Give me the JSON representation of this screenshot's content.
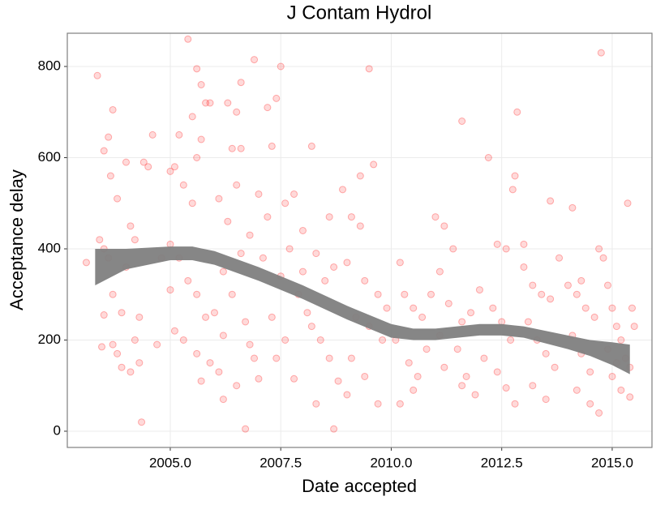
{
  "chart_data": {
    "type": "scatter",
    "title": "J Contam Hydrol",
    "x_label": "Date accepted",
    "y_label": "Acceptance delay",
    "color": "#ff0000",
    "grid": true,
    "xlim": [
      2002.67,
      2015.9
    ],
    "ylim": [
      -35.6,
      872.9
    ],
    "xticks": [
      {
        "value": 2005,
        "label": "2005.0"
      },
      {
        "value": 2007.5,
        "label": "2007.5"
      },
      {
        "value": 2010,
        "label": "2010.0"
      },
      {
        "value": 2012.5,
        "label": "2012.5"
      },
      {
        "value": 2015,
        "label": "2015.0"
      }
    ],
    "yticks": [
      0,
      200,
      400,
      600,
      800
    ],
    "x": [
      2003.35,
      2003.5,
      2003.6,
      2003.7,
      2003.65,
      2003.8,
      2003.4,
      2003.5,
      2003.6,
      2003.7,
      2003.5,
      2003.45,
      2003.7,
      2003.8,
      2003.9,
      2004.0,
      2004.1,
      2004.2,
      2004.3,
      2004.1,
      2004.2,
      2004.3,
      2004.35,
      2003.9,
      2004.0,
      2004.5,
      2004.6,
      2004.4,
      2004.7,
      2003.1,
      2004.8,
      2005.0,
      2005.1,
      2005.2,
      2005.4,
      2005.5,
      2005.6,
      2005.7,
      2005.8,
      2005.9,
      2005.7,
      2005.6,
      2005.3,
      2005.5,
      2005.0,
      2005.2,
      2005.4,
      2005.6,
      2005.8,
      2005.0,
      2005.1,
      2005.3,
      2005.6,
      2005.7,
      2005.9,
      2006.0,
      2006.1,
      2006.2,
      2006.3,
      2006.5,
      2006.6,
      2006.9,
      2006.4,
      2006.6,
      2006.1,
      2006.3,
      2006.5,
      2006.6,
      2006.2,
      2006.4,
      2006.7,
      2006.8,
      2006.9,
      2006.5,
      2006.7,
      2006.2,
      2006.8,
      2007.2,
      2007.4,
      2007.5,
      2007.3,
      2007.0,
      2007.2,
      2007.6,
      2007.8,
      2007.7,
      2007.1,
      2007.5,
      2007.9,
      2007.3,
      2007.6,
      2007.8,
      2007.0,
      2007.4,
      2008.2,
      2008.3,
      2008.0,
      2008.5,
      2008.7,
      2008.1,
      2008.4,
      2008.6,
      2008.8,
      2008.7,
      2008.3,
      2008.0,
      2008.6,
      2008.9,
      2008.2,
      2009.5,
      2009.3,
      2009.6,
      2009.1,
      2009.3,
      2009.0,
      2009.4,
      2009.7,
      2009.2,
      2009.5,
      2009.8,
      2009.1,
      2009.4,
      2009.0,
      2009.7,
      2009.9,
      2010.2,
      2010.3,
      2010.5,
      2010.1,
      2010.4,
      2010.6,
      2010.8,
      2010.2,
      2010.5,
      2010.9,
      2010.7,
      2011.6,
      2011.0,
      2011.2,
      2011.4,
      2011.1,
      2011.3,
      2011.6,
      2011.8,
      2011.5,
      2011.2,
      2011.7,
      2011.9,
      2011.1,
      2012.2,
      2012.4,
      2012.6,
      2012.0,
      2012.3,
      2012.5,
      2012.7,
      2012.1,
      2012.4,
      2012.6,
      2012.8,
      2011.6,
      2012.85,
      2012.8,
      2012.75,
      2013.0,
      2013.2,
      2013.4,
      2013.6,
      2013.1,
      2013.3,
      2013.5,
      2013.7,
      2013.2,
      2013.5,
      2013.6,
      2013.8,
      2013.0,
      2014.1,
      2014.0,
      2014.2,
      2014.4,
      2014.6,
      2014.1,
      2014.3,
      2014.5,
      2014.2,
      2014.5,
      2014.7,
      2014.3,
      2014.75,
      2014.7,
      2014.8,
      2014.9,
      2015.0,
      2015.1,
      2015.2,
      2015.3,
      2015.0,
      2015.2,
      2015.4,
      2015.35,
      2015.45,
      2015.5,
      2015.4,
      2014.9,
      2015.1
    ],
    "values": [
      780,
      615,
      645,
      705,
      560,
      510,
      420,
      400,
      380,
      300,
      255,
      185,
      190,
      170,
      140,
      590,
      450,
      420,
      250,
      130,
      200,
      150,
      20,
      260,
      360,
      580,
      650,
      590,
      190,
      370,
      380,
      570,
      580,
      650,
      860,
      690,
      795,
      760,
      720,
      720,
      640,
      600,
      540,
      500,
      410,
      380,
      330,
      300,
      250,
      310,
      220,
      200,
      170,
      110,
      150,
      260,
      130,
      210,
      720,
      700,
      765,
      815,
      620,
      620,
      510,
      460,
      540,
      390,
      350,
      300,
      240,
      190,
      160,
      100,
      5,
      70,
      430,
      710,
      730,
      800,
      625,
      520,
      470,
      500,
      520,
      400,
      380,
      340,
      300,
      250,
      200,
      115,
      115,
      160,
      625,
      390,
      350,
      330,
      360,
      260,
      200,
      160,
      110,
      5,
      60,
      440,
      470,
      530,
      230,
      795,
      560,
      585,
      470,
      450,
      370,
      330,
      300,
      250,
      230,
      200,
      160,
      120,
      80,
      60,
      270,
      370,
      300,
      270,
      200,
      150,
      120,
      180,
      60,
      90,
      300,
      250,
      680,
      470,
      450,
      400,
      350,
      280,
      240,
      260,
      180,
      140,
      120,
      80,
      210,
      600,
      410,
      400,
      310,
      270,
      240,
      200,
      160,
      130,
      95,
      60,
      100,
      700,
      560,
      530,
      360,
      320,
      300,
      290,
      240,
      200,
      170,
      140,
      100,
      70,
      505,
      380,
      410,
      490,
      320,
      300,
      270,
      250,
      210,
      170,
      130,
      90,
      60,
      40,
      330,
      830,
      400,
      380,
      320,
      270,
      230,
      200,
      160,
      120,
      90,
      75,
      500,
      270,
      230,
      140,
      180,
      150
    ],
    "band": {
      "color": "#808080",
      "x": [
        2003.3,
        2004.0,
        2005.0,
        2005.5,
        2006.0,
        2007.0,
        2008.0,
        2009.0,
        2010.0,
        2010.5,
        2011.0,
        2012.0,
        2012.5,
        2013.0,
        2014.0,
        2014.5,
        2015.0,
        2015.4
      ],
      "lower": [
        320,
        355,
        375,
        375,
        365,
        330,
        290,
        245,
        205,
        200,
        200,
        210,
        210,
        205,
        180,
        165,
        145,
        125
      ],
      "upper": [
        400,
        400,
        405,
        405,
        395,
        360,
        320,
        275,
        235,
        225,
        225,
        235,
        235,
        230,
        210,
        200,
        195,
        190
      ]
    }
  }
}
